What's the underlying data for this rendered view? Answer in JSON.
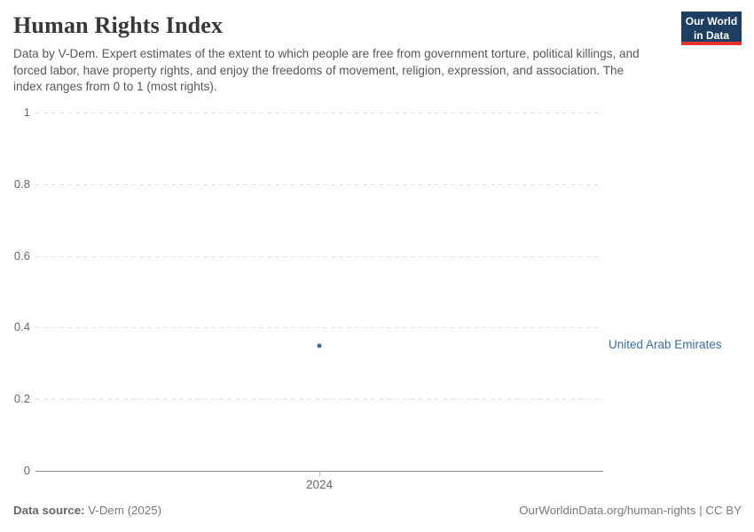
{
  "header": {
    "title": "Human Rights Index",
    "subtitle": "Data by V-Dem. Expert estimates of the extent to which people are free from government torture, political killings, and forced labor, have property rights, and enjoy the freedoms of movement, religion, expression, and association. The index ranges from 0 to 1 (most rights).",
    "logo": {
      "line1": "Our World",
      "line2": "in Data"
    }
  },
  "chart_data": {
    "type": "scatter",
    "title": "Human Rights Index",
    "x": [
      2024
    ],
    "xtick_labels": [
      "2024"
    ],
    "series": [
      {
        "name": "United Arab Emirates",
        "values": [
          0.35
        ],
        "color": "#3b6ba5"
      }
    ],
    "xlabel": "",
    "ylabel": "",
    "ylim": [
      0,
      1
    ],
    "yticks": [
      0,
      0.2,
      0.4,
      0.6,
      0.8,
      1
    ],
    "ytick_labels": [
      "0",
      "0.2",
      "0.4",
      "0.6",
      "0.8",
      "1"
    ],
    "grid": "horizontal-dashed",
    "legend_position": "right-of-plot"
  },
  "footer": {
    "source_label": "Data source:",
    "source_value": "V-Dem (2025)",
    "credit": "OurWorldinData.org/human-rights | CC BY"
  },
  "colors": {
    "accent_blue": "#3b6ba5",
    "logo_bg": "#1d3d63",
    "logo_stripe": "#e5332d",
    "gridline": "#e2e2e2",
    "axis": "#8f8f8f"
  }
}
